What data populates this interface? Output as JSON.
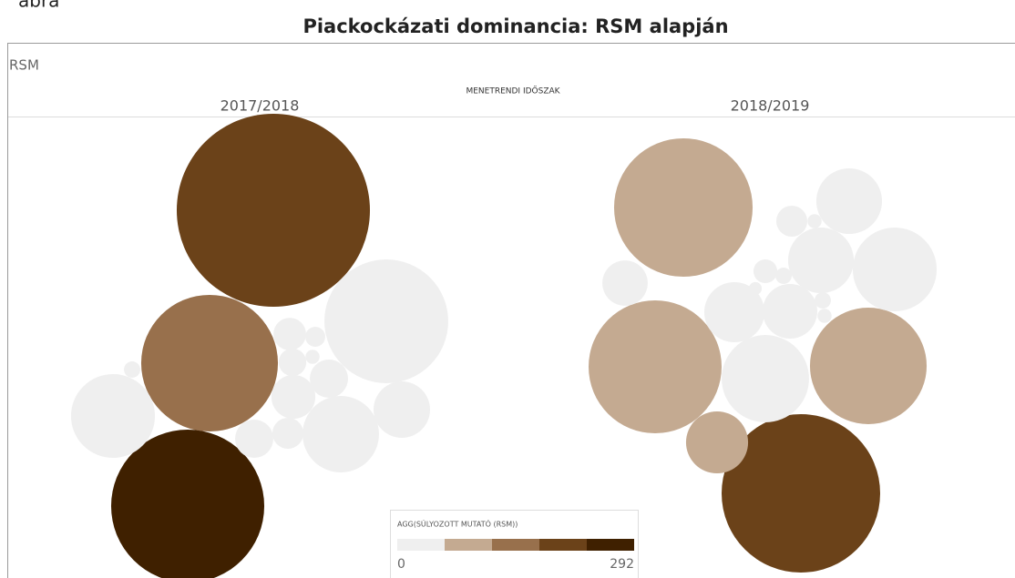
{
  "caption": "ábra",
  "chart_data": {
    "type": "packed-bubble",
    "title": "Piackockázati dominancia: RSM alapján",
    "measure_label": "RSM",
    "column_header": "MENETRENDI IDŐSZAK",
    "panels": [
      {
        "name": "2017/2018",
        "sizes": [
          1124,
          563,
          706,
          462,
          212,
          176,
          96,
          58,
          44,
          32,
          12,
          23,
          29,
          44,
          8,
          6
        ],
        "colors": [
          "#6b4219",
          "#98704c",
          "#3f2000",
          "#efefef",
          "#efefef",
          "#efefef",
          "#efefef",
          "#efefef",
          "#efefef",
          "#efefef",
          "#efefef",
          "#efefef",
          "#efefef",
          "#efefef",
          "#efefef",
          "#efefef"
        ]
      },
      {
        "name": "2018/2019",
        "sizes": [
          578,
          533,
          410,
          757,
          116,
          212,
          230,
          130,
          130,
          109,
          90,
          62,
          29,
          17,
          8,
          6,
          8,
          6,
          5
        ],
        "colors": [
          "#c4aa91",
          "#c4aa91",
          "#c4aa91",
          "#6b4219",
          "#c4aa91",
          "#efefef",
          "#efefef",
          "#efefef",
          "#efefef",
          "#efefef",
          "#efefef",
          "#efefef",
          "#efefef",
          "#efefef",
          "#efefef",
          "#efefef",
          "#efefef",
          "#efefef",
          "#efefef"
        ]
      }
    ],
    "legend": {
      "title": "AGG(SÚLYOZOTT MUTATÓ (RSM))",
      "min": 0,
      "max": 292,
      "colors": [
        "#efefef",
        "#c4aa91",
        "#98704c",
        "#6b4219",
        "#3f2000"
      ]
    }
  }
}
